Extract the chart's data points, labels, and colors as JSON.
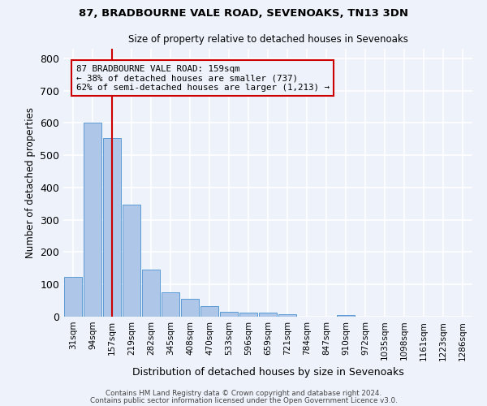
{
  "title1": "87, BRADBOURNE VALE ROAD, SEVENOAKS, TN13 3DN",
  "title2": "Size of property relative to detached houses in Sevenoaks",
  "xlabel": "Distribution of detached houses by size in Sevenoaks",
  "ylabel": "Number of detached properties",
  "footer1": "Contains HM Land Registry data © Crown copyright and database right 2024.",
  "footer2": "Contains public sector information licensed under the Open Government Licence v3.0.",
  "annotation_line1": "87 BRADBOURNE VALE ROAD: 159sqm",
  "annotation_line2": "← 38% of detached houses are smaller (737)",
  "annotation_line3": "62% of semi-detached houses are larger (1,213) →",
  "categories": [
    "31sqm",
    "94sqm",
    "157sqm",
    "219sqm",
    "282sqm",
    "345sqm",
    "408sqm",
    "470sqm",
    "533sqm",
    "596sqm",
    "659sqm",
    "721sqm",
    "784sqm",
    "847sqm",
    "910sqm",
    "972sqm",
    "1035sqm",
    "1098sqm",
    "1161sqm",
    "1223sqm",
    "1286sqm"
  ],
  "values": [
    122,
    600,
    553,
    347,
    147,
    75,
    55,
    33,
    14,
    13,
    13,
    7,
    0,
    0,
    6,
    0,
    0,
    0,
    0,
    0,
    0
  ],
  "bar_color": "#aec6e8",
  "bar_edge_color": "#5b9bd5",
  "highlight_bar_index": 2,
  "highlight_line_color": "#cc0000",
  "annotation_box_color": "#cc0000",
  "background_color": "#eef2fb",
  "grid_color": "#ffffff",
  "ylim": [
    0,
    830
  ],
  "yticks": [
    0,
    100,
    200,
    300,
    400,
    500,
    600,
    700,
    800
  ]
}
